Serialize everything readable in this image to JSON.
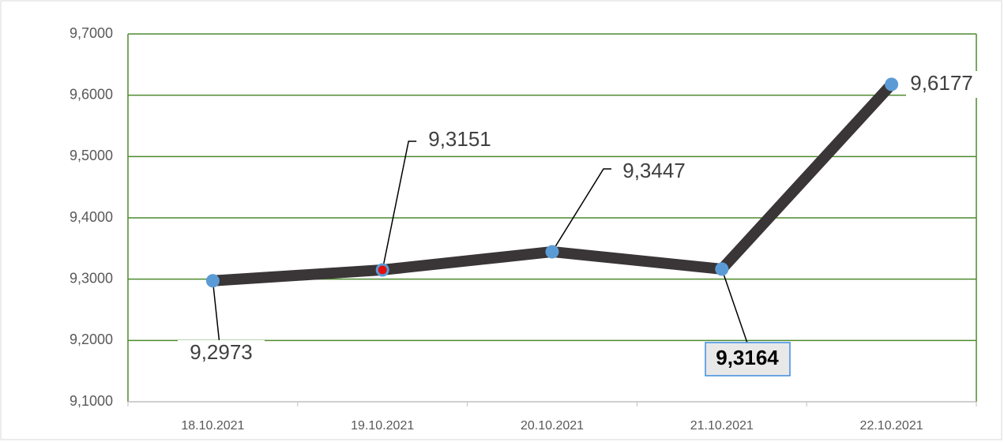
{
  "chart_data": {
    "type": "line",
    "categories": [
      "18.10.2021",
      "19.10.2021",
      "20.10.2021",
      "21.10.2021",
      "22.10.2021"
    ],
    "values": [
      9.2973,
      9.3151,
      9.3447,
      9.3164,
      9.6177
    ],
    "value_labels": [
      "9,2973",
      "9,3151",
      "9,3447",
      "9,3164",
      "9,6177"
    ],
    "color": "#3a3536",
    "marker_colors": [
      "#5b9bd5",
      "#e01010",
      "#5b9bd5",
      "#5b9bd5",
      "#5b9bd5"
    ],
    "ylim": [
      9.1,
      9.7
    ],
    "yticks": [
      {
        "value": 9.1,
        "label": "9,1000"
      },
      {
        "value": 9.2,
        "label": "9,2000"
      },
      {
        "value": 9.3,
        "label": "9,3000"
      },
      {
        "value": 9.4,
        "label": "9,4000"
      },
      {
        "value": 9.5,
        "label": "9,5000"
      },
      {
        "value": 9.6,
        "label": "9,6000"
      },
      {
        "value": 9.7,
        "label": "9,7000"
      }
    ],
    "grid": true,
    "grid_color": "#4e8a2e"
  }
}
